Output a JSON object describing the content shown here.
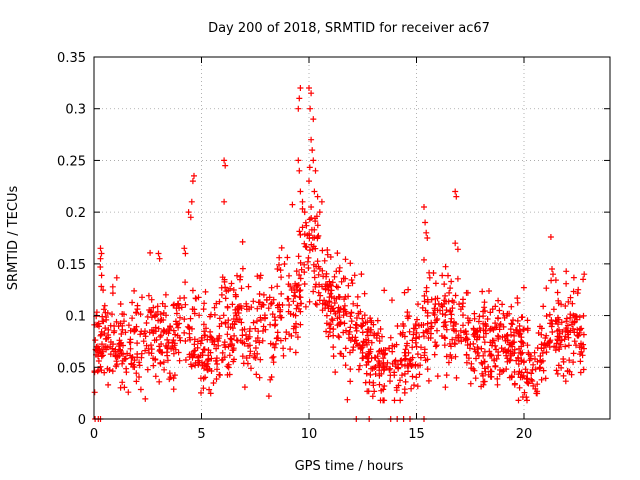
{
  "chart_data": {
    "type": "scatter",
    "title": "Day 200 of 2018, SRMTID for receiver ac67",
    "xlabel": "GPS time / hours",
    "ylabel": "SRMTID / TECUs",
    "xlim": [
      0,
      24
    ],
    "ylim": [
      0,
      0.35
    ],
    "x_ticks": [
      0,
      5,
      10,
      15,
      20
    ],
    "x_tick_labels": [
      "0",
      "5",
      "10",
      "15",
      "20"
    ],
    "y_ticks": [
      0,
      0.05,
      0.1,
      0.15,
      0.2,
      0.25,
      0.3,
      0.35
    ],
    "y_tick_labels": [
      "0",
      "0.05",
      "0.1",
      "0.15",
      "0.2",
      "0.25",
      "0.3",
      "0.35"
    ],
    "grid": true,
    "marker": "plus",
    "series_color": "#ff0000",
    "series": [
      {
        "name": "SRMTID",
        "trend": [
          [
            0.0,
            0.07
          ],
          [
            0.5,
            0.085
          ],
          [
            1.0,
            0.075
          ],
          [
            1.5,
            0.065
          ],
          [
            2.0,
            0.07
          ],
          [
            2.5,
            0.08
          ],
          [
            3.0,
            0.08
          ],
          [
            3.5,
            0.075
          ],
          [
            4.0,
            0.09
          ],
          [
            4.5,
            0.09
          ],
          [
            5.0,
            0.065
          ],
          [
            5.5,
            0.07
          ],
          [
            6.0,
            0.085
          ],
          [
            6.5,
            0.095
          ],
          [
            7.0,
            0.09
          ],
          [
            7.5,
            0.085
          ],
          [
            8.0,
            0.09
          ],
          [
            8.5,
            0.095
          ],
          [
            9.0,
            0.1
          ],
          [
            9.5,
            0.13
          ],
          [
            10.0,
            0.17
          ],
          [
            10.5,
            0.14
          ],
          [
            11.0,
            0.11
          ],
          [
            11.5,
            0.1
          ],
          [
            12.0,
            0.09
          ],
          [
            12.5,
            0.075
          ],
          [
            13.0,
            0.065
          ],
          [
            13.5,
            0.06
          ],
          [
            14.0,
            0.06
          ],
          [
            14.5,
            0.065
          ],
          [
            15.0,
            0.07
          ],
          [
            15.5,
            0.09
          ],
          [
            16.0,
            0.095
          ],
          [
            16.5,
            0.095
          ],
          [
            17.0,
            0.09
          ],
          [
            17.5,
            0.08
          ],
          [
            18.0,
            0.075
          ],
          [
            18.5,
            0.07
          ],
          [
            19.0,
            0.07
          ],
          [
            19.5,
            0.065
          ],
          [
            20.0,
            0.06
          ],
          [
            20.5,
            0.055
          ],
          [
            21.0,
            0.075
          ],
          [
            21.5,
            0.085
          ],
          [
            22.0,
            0.08
          ],
          [
            22.5,
            0.085
          ],
          [
            22.8,
            0.07
          ]
        ],
        "spread": 0.025,
        "x_range": [
          0.0,
          22.8
        ],
        "n_points": 1600,
        "highlights": [
          [
            0.3,
            0.165
          ],
          [
            0.3,
            0.155
          ],
          [
            0.35,
            0.16
          ],
          [
            4.4,
            0.2
          ],
          [
            4.5,
            0.195
          ],
          [
            4.55,
            0.21
          ],
          [
            4.6,
            0.23
          ],
          [
            4.65,
            0.235
          ],
          [
            6.05,
            0.25
          ],
          [
            6.1,
            0.245
          ],
          [
            6.05,
            0.21
          ],
          [
            3.0,
            0.16
          ],
          [
            3.05,
            0.155
          ],
          [
            4.2,
            0.165
          ],
          [
            4.25,
            0.16
          ],
          [
            9.5,
            0.3
          ],
          [
            9.6,
            0.32
          ],
          [
            9.55,
            0.31
          ],
          [
            9.5,
            0.25
          ],
          [
            9.55,
            0.24
          ],
          [
            9.6,
            0.22
          ],
          [
            9.7,
            0.21
          ],
          [
            9.8,
            0.2
          ],
          [
            10.0,
            0.32
          ],
          [
            10.1,
            0.315
          ],
          [
            10.05,
            0.3
          ],
          [
            10.2,
            0.29
          ],
          [
            10.1,
            0.27
          ],
          [
            10.15,
            0.26
          ],
          [
            10.2,
            0.25
          ],
          [
            10.3,
            0.24
          ],
          [
            10.0,
            0.23
          ],
          [
            10.25,
            0.22
          ],
          [
            10.4,
            0.215
          ],
          [
            10.5,
            0.2
          ],
          [
            10.6,
            0.21
          ],
          [
            10.1,
            0.205
          ],
          [
            15.35,
            0.205
          ],
          [
            15.4,
            0.19
          ],
          [
            15.45,
            0.18
          ],
          [
            15.5,
            0.175
          ],
          [
            16.8,
            0.22
          ],
          [
            16.85,
            0.215
          ],
          [
            16.8,
            0.17
          ],
          [
            21.3,
            0.145
          ],
          [
            21.35,
            0.14
          ],
          [
            22.8,
            0.14
          ],
          [
            22.75,
            0.135
          ]
        ],
        "zeros_x": [
          0.05,
          0.2,
          0.3,
          12.2,
          12.8,
          13.8,
          14.1,
          14.4,
          14.7,
          15.35
        ]
      }
    ]
  }
}
